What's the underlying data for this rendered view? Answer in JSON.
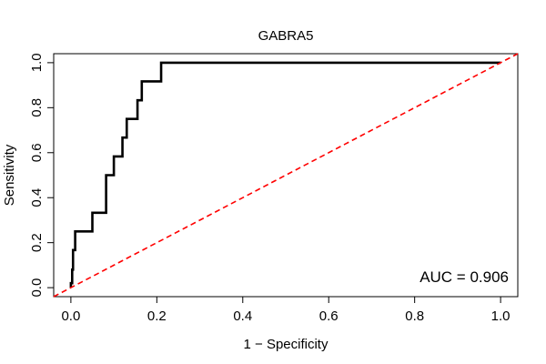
{
  "chart_data": {
    "type": "line",
    "title": "GABRA5",
    "xlabel": "1 − Specificity",
    "ylabel": "Sensitivity",
    "xlim": [
      -0.04,
      1.04
    ],
    "ylim": [
      -0.04,
      1.04
    ],
    "xticks": [
      0.0,
      0.2,
      0.4,
      0.6,
      0.8,
      1.0
    ],
    "xtick_labels": [
      "0.0",
      "0.2",
      "0.4",
      "0.6",
      "0.8",
      "1.0"
    ],
    "yticks": [
      0.0,
      0.2,
      0.4,
      0.6,
      0.8,
      1.0
    ],
    "ytick_labels": [
      "0.0",
      "0.2",
      "0.4",
      "0.6",
      "0.8",
      "1.0"
    ],
    "grid": false,
    "annotation": "AUC = 0.906",
    "series": [
      {
        "name": "ROC",
        "color": "#000000",
        "style": "solid",
        "x": [
          0.0,
          0.0,
          0.003,
          0.003,
          0.005,
          0.005,
          0.01,
          0.01,
          0.05,
          0.05,
          0.082,
          0.082,
          0.1,
          0.1,
          0.12,
          0.12,
          0.13,
          0.13,
          0.135,
          0.135,
          0.155,
          0.155,
          0.16,
          0.16,
          0.165,
          0.165,
          0.21,
          0.21,
          1.0
        ],
        "y": [
          0.0,
          0.02,
          0.02,
          0.08,
          0.08,
          0.167,
          0.167,
          0.25,
          0.25,
          0.333,
          0.333,
          0.5,
          0.5,
          0.583,
          0.583,
          0.667,
          0.667,
          0.75,
          0.75,
          0.75,
          0.75,
          0.833,
          0.833,
          0.833,
          0.833,
          0.917,
          0.917,
          1.0,
          1.0
        ]
      },
      {
        "name": "Reference",
        "color": "#ff0000",
        "style": "dashed",
        "x": [
          -0.04,
          1.04
        ],
        "y": [
          -0.04,
          1.04
        ]
      }
    ]
  }
}
